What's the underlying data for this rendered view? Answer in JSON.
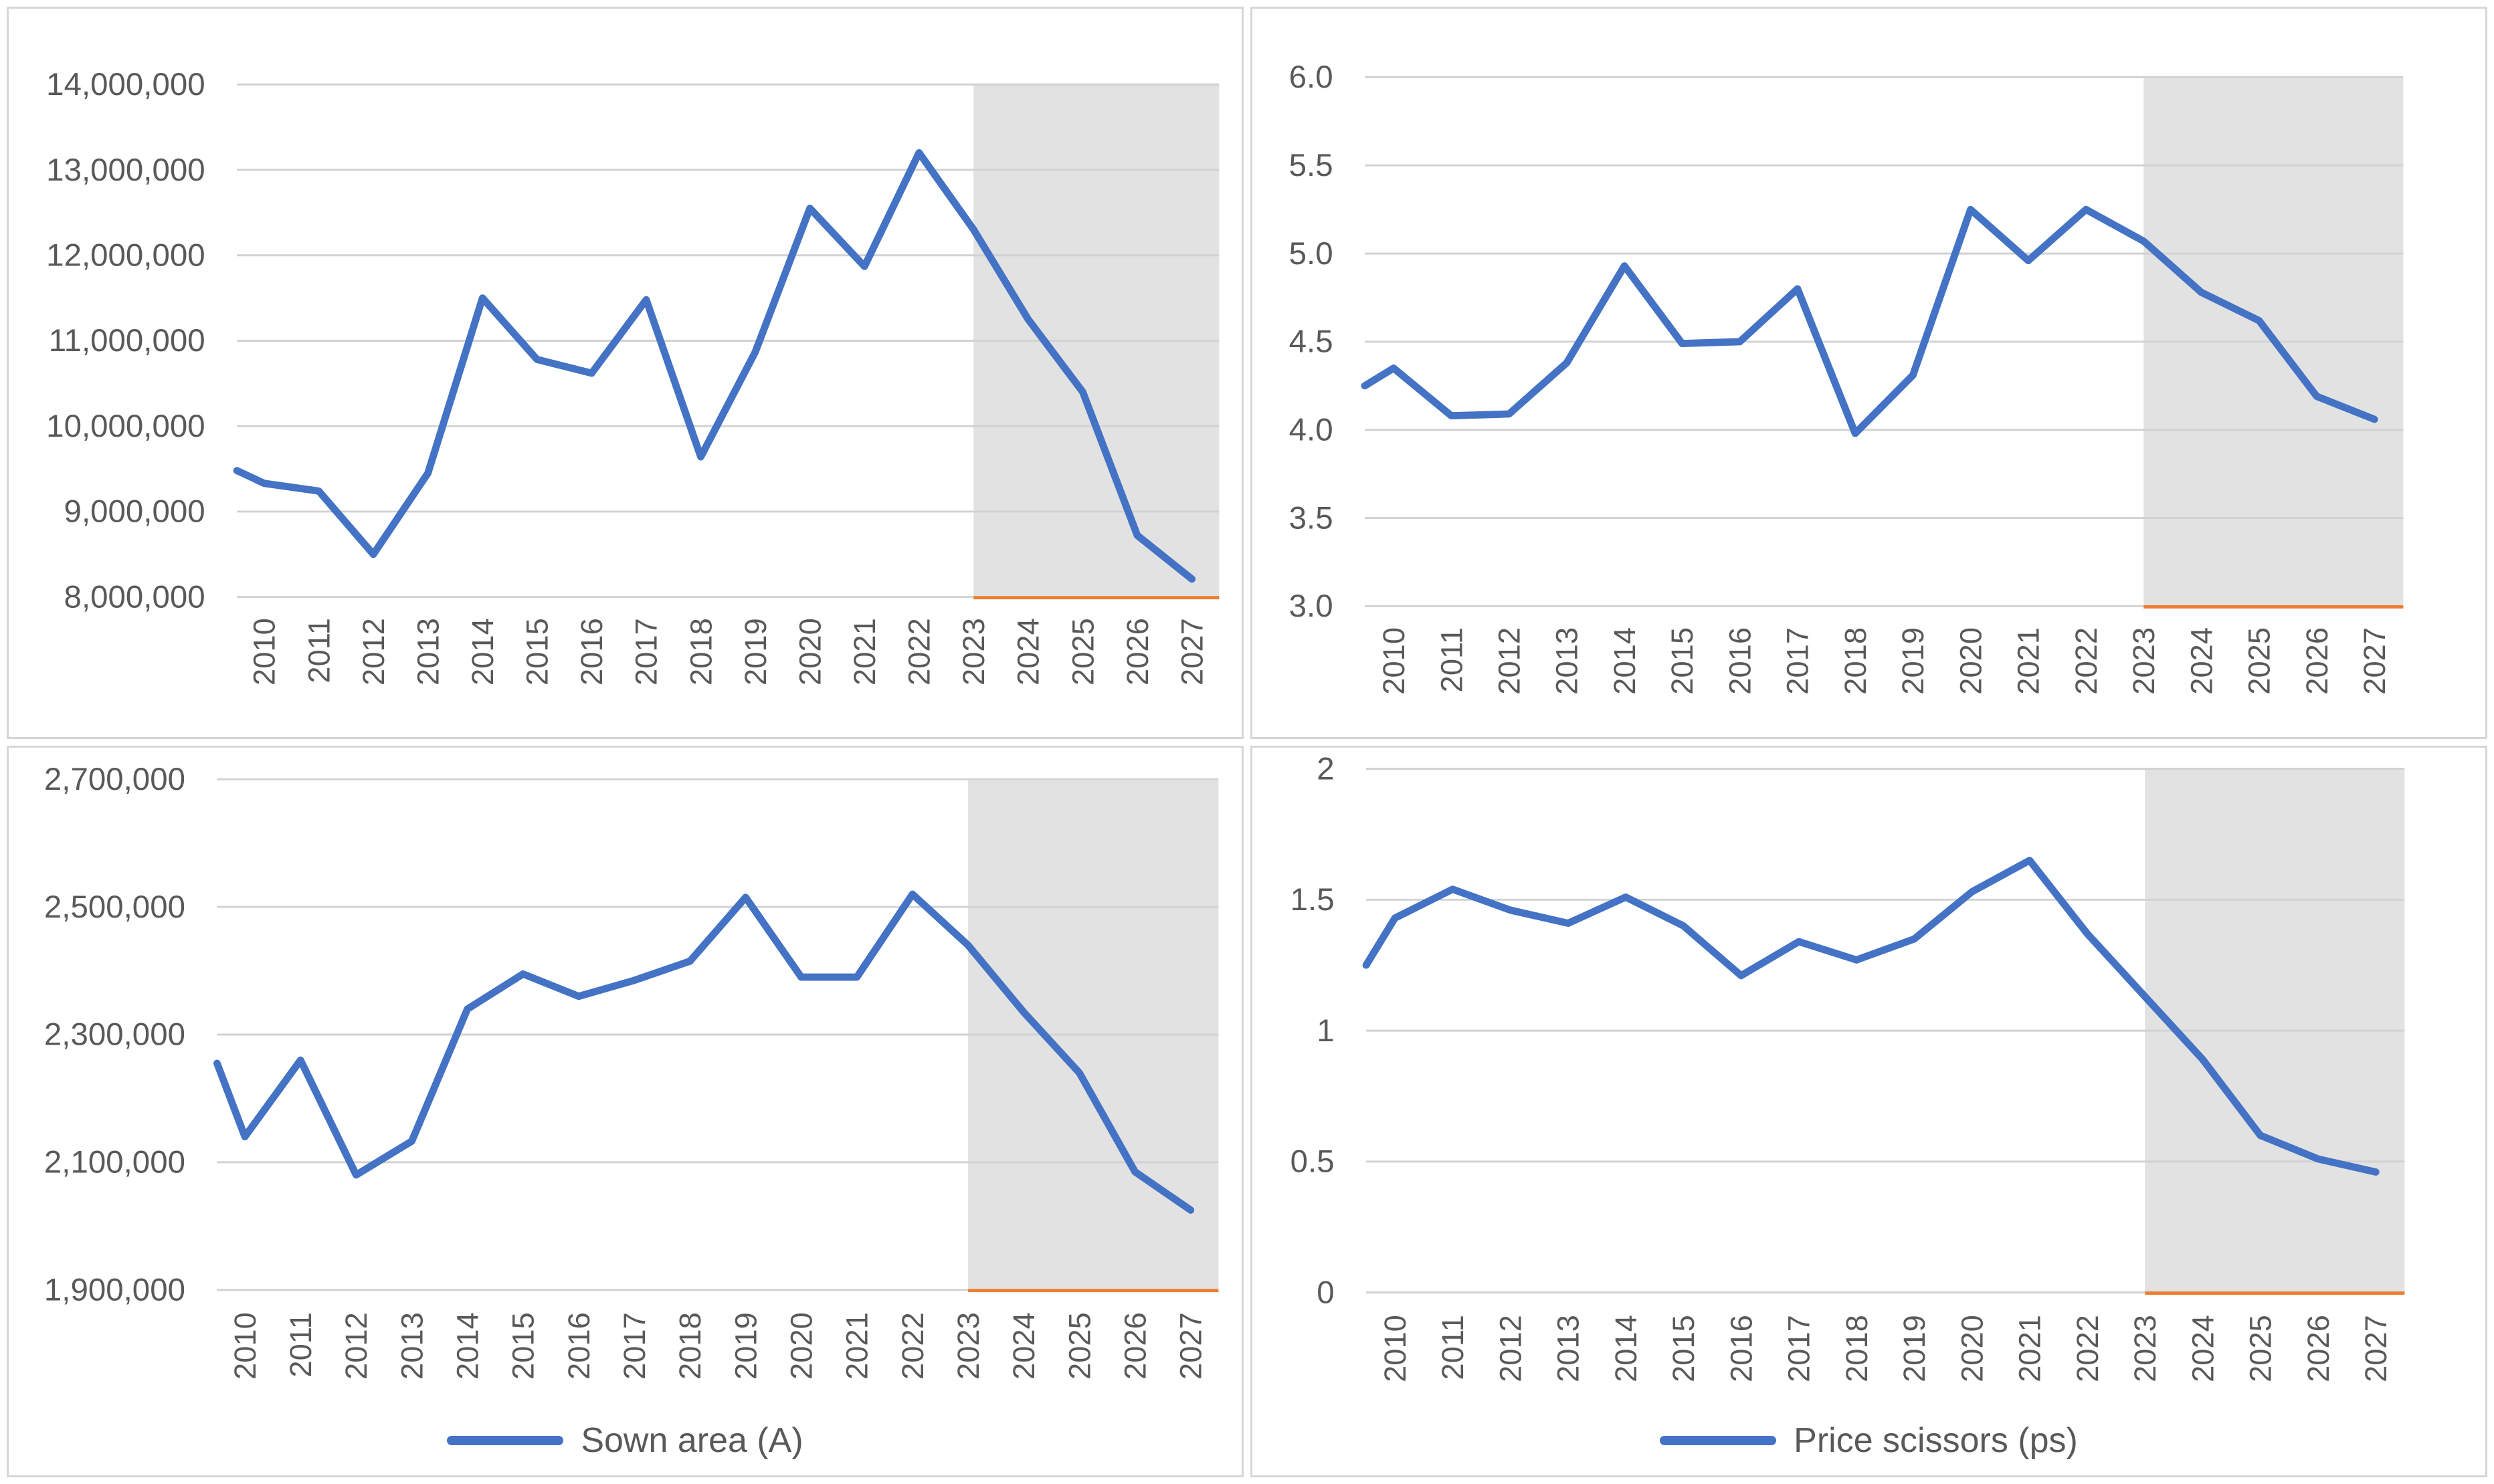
{
  "colors": {
    "series_blue": "#4472C4",
    "forecast_baseline_orange": "#ED7D31",
    "gridline": "#D2D2D2",
    "forecast_shading": "#E2E2E2",
    "tick_text": "#595959",
    "panel_border": "#D6D6D6"
  },
  "x_labels": [
    "2010",
    "2011",
    "2012",
    "2013",
    "2014",
    "2015",
    "2016",
    "2017",
    "2018",
    "2019",
    "2020",
    "2021",
    "2022",
    "2023",
    "2024",
    "2025",
    "2026",
    "2027"
  ],
  "forecast": {
    "start_year": "2023",
    "note_visible_as": "gray shaded region with orange baseline at axis minimum"
  },
  "chart_data": [
    {
      "type": "line",
      "position": "top-left",
      "title": "",
      "xlabel": "",
      "ylabel": "",
      "legend_label": null,
      "y_axis": {
        "min": 8000000,
        "max": 14000000,
        "tick_step": 1000000,
        "tick_labels": [
          "14,000,000",
          "13,000,000",
          "12,000,000",
          "11,000,000",
          "10,000,000",
          "9,000,000",
          "8,000,000"
        ]
      },
      "categories": [
        "2010",
        "2011",
        "2012",
        "2013",
        "2014",
        "2015",
        "2016",
        "2017",
        "2018",
        "2019",
        "2020",
        "2021",
        "2022",
        "2023",
        "2024",
        "2025",
        "2026",
        "2027"
      ],
      "edge_start_value": 9480000,
      "values": [
        9330000,
        9240000,
        8500000,
        9450000,
        11500000,
        10780000,
        10620000,
        11480000,
        9640000,
        10870000,
        12550000,
        11870000,
        13200000,
        12300000,
        11250000,
        10400000,
        8720000,
        8210000
      ],
      "forecast_start_category": "2023",
      "baseline_segment_value": 8000000
    },
    {
      "type": "line",
      "position": "top-right",
      "title": "",
      "xlabel": "",
      "ylabel": "",
      "legend_label": null,
      "y_axis": {
        "min": 3.0,
        "max": 6.0,
        "tick_step": 0.5,
        "tick_labels": [
          "6.0",
          "5.5",
          "5.0",
          "4.5",
          "4.0",
          "3.5",
          "3.0"
        ]
      },
      "categories": [
        "2010",
        "2011",
        "2012",
        "2013",
        "2014",
        "2015",
        "2016",
        "2017",
        "2018",
        "2019",
        "2020",
        "2021",
        "2022",
        "2023",
        "2024",
        "2025",
        "2026",
        "2027"
      ],
      "edge_start_value": 4.25,
      "values": [
        4.35,
        4.08,
        4.09,
        4.38,
        4.93,
        4.49,
        4.5,
        4.8,
        3.98,
        4.31,
        5.25,
        4.96,
        5.25,
        5.07,
        4.78,
        4.62,
        4.19,
        4.06
      ],
      "forecast_start_category": "2023",
      "baseline_segment_value": 3.0
    },
    {
      "type": "line",
      "position": "bottom-left",
      "title": "",
      "xlabel": "",
      "ylabel": "",
      "legend_label": "Sown area (A)",
      "y_axis": {
        "min": 1900000,
        "max": 2700000,
        "tick_step": 200000,
        "tick_labels": [
          "2,700,000",
          "2,500,000",
          "2,300,000",
          "2,100,000",
          "1,900,000"
        ]
      },
      "categories": [
        "2010",
        "2011",
        "2012",
        "2013",
        "2014",
        "2015",
        "2016",
        "2017",
        "2018",
        "2019",
        "2020",
        "2021",
        "2022",
        "2023",
        "2024",
        "2025",
        "2026",
        "2027"
      ],
      "edge_start_value": 2255000,
      "values": [
        2140000,
        2260000,
        2080000,
        2133000,
        2340000,
        2395000,
        2360000,
        2385000,
        2415000,
        2515000,
        2390000,
        2390000,
        2520000,
        2440000,
        2335000,
        2240000,
        2085000,
        2025000
      ],
      "forecast_start_category": "2023",
      "baseline_segment_value": 1900000
    },
    {
      "type": "line",
      "position": "bottom-right",
      "title": "",
      "xlabel": "",
      "ylabel": "",
      "legend_label": "Price scissors (ps)",
      "y_axis": {
        "min": 0,
        "max": 2,
        "tick_step": 0.5,
        "tick_labels": [
          "2",
          "1.5",
          "1",
          "0.5",
          "0"
        ]
      },
      "categories": [
        "2010",
        "2011",
        "2012",
        "2013",
        "2014",
        "2015",
        "2016",
        "2017",
        "2018",
        "2019",
        "2020",
        "2021",
        "2022",
        "2023",
        "2024",
        "2025",
        "2026",
        "2027"
      ],
      "edge_start_value": 1.25,
      "values": [
        1.43,
        1.54,
        1.46,
        1.41,
        1.51,
        1.4,
        1.21,
        1.34,
        1.27,
        1.35,
        1.53,
        1.65,
        1.37,
        1.13,
        0.89,
        0.6,
        0.51,
        0.46
      ],
      "forecast_start_category": "2023",
      "baseline_segment_value": 0
    }
  ]
}
